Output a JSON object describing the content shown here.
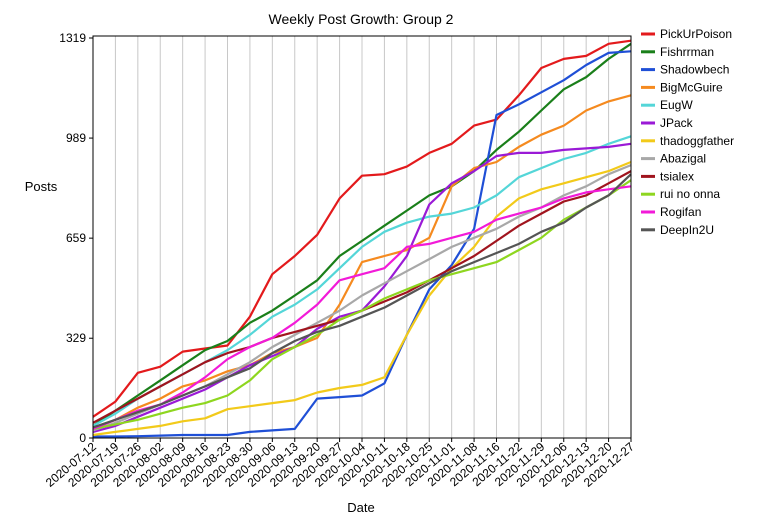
{
  "chart_data": {
    "type": "line",
    "title": "Weekly Post Growth: Group 2",
    "xlabel": "Date",
    "ylabel": "Posts",
    "ylim": [
      0,
      1319
    ],
    "yticks": [
      0,
      329,
      659,
      989,
      1319
    ],
    "grid": "vertical",
    "legend": "right",
    "categories": [
      "2020-07-12",
      "2020-07-19",
      "2020-07-26",
      "2020-08-02",
      "2020-08-09",
      "2020-08-16",
      "2020-08-23",
      "2020-08-30",
      "2020-09-06",
      "2020-09-13",
      "2020-09-20",
      "2020-09-27",
      "2020-10-04",
      "2020-10-11",
      "2020-10-18",
      "2020-10-25",
      "2020-11-01",
      "2020-11-08",
      "2020-11-16",
      "2020-11-22",
      "2020-11-29",
      "2020-12-06",
      "2020-12-13",
      "2020-12-20",
      "2020-12-27"
    ],
    "series": [
      {
        "name": "PickUrPoison",
        "color": "#e31a1c",
        "values": [
          70,
          120,
          215,
          235,
          285,
          295,
          305,
          400,
          540,
          600,
          670,
          790,
          865,
          870,
          895,
          940,
          970,
          1030,
          1050,
          1130,
          1220,
          1250,
          1260,
          1300,
          1310
        ]
      },
      {
        "name": "Fishrrman",
        "color": "#1a7f1a",
        "values": [
          40,
          90,
          140,
          190,
          240,
          290,
          320,
          380,
          420,
          470,
          520,
          600,
          650,
          700,
          750,
          800,
          830,
          880,
          950,
          1010,
          1080,
          1150,
          1190,
          1250,
          1300
        ]
      },
      {
        "name": "Shadowbech",
        "color": "#1f4fd6",
        "values": [
          5,
          5,
          6,
          8,
          10,
          10,
          10,
          20,
          25,
          30,
          130,
          135,
          140,
          180,
          340,
          490,
          570,
          690,
          1065,
          1100,
          1140,
          1180,
          1230,
          1270,
          1275
        ]
      },
      {
        "name": "BigMcGuire",
        "color": "#f58a1f",
        "values": [
          30,
          60,
          100,
          130,
          170,
          190,
          220,
          240,
          280,
          300,
          330,
          440,
          580,
          600,
          620,
          660,
          830,
          890,
          910,
          960,
          1000,
          1030,
          1080,
          1110,
          1130
        ]
      },
      {
        "name": "EugW",
        "color": "#54d6d8",
        "values": [
          40,
          80,
          130,
          170,
          210,
          250,
          290,
          340,
          400,
          440,
          490,
          560,
          630,
          680,
          710,
          730,
          740,
          760,
          800,
          860,
          890,
          920,
          940,
          970,
          995
        ]
      },
      {
        "name": "JPack",
        "color": "#9a1ad6",
        "values": [
          20,
          40,
          70,
          100,
          130,
          160,
          200,
          240,
          270,
          300,
          360,
          400,
          420,
          500,
          600,
          770,
          840,
          880,
          930,
          940,
          940,
          950,
          955,
          960,
          970
        ]
      },
      {
        "name": "thadoggfather",
        "color": "#f2ca1a",
        "values": [
          10,
          20,
          30,
          40,
          55,
          65,
          95,
          105,
          115,
          125,
          150,
          165,
          175,
          200,
          340,
          470,
          560,
          630,
          730,
          790,
          820,
          840,
          860,
          880,
          910
        ]
      },
      {
        "name": "Abazigal",
        "color": "#a8a8a8",
        "values": [
          25,
          50,
          80,
          110,
          140,
          170,
          210,
          250,
          300,
          340,
          380,
          420,
          470,
          510,
          550,
          590,
          630,
          660,
          690,
          730,
          760,
          800,
          830,
          870,
          900
        ]
      },
      {
        "name": "tsialex",
        "color": "#a0141e",
        "values": [
          50,
          90,
          130,
          170,
          210,
          250,
          280,
          300,
          330,
          350,
          370,
          390,
          420,
          450,
          480,
          520,
          560,
          600,
          650,
          700,
          740,
          780,
          800,
          840,
          880
        ]
      },
      {
        "name": "rui no onna",
        "color": "#8ed61f",
        "values": [
          30,
          45,
          60,
          80,
          100,
          115,
          140,
          190,
          260,
          300,
          340,
          390,
          420,
          460,
          490,
          520,
          540,
          560,
          580,
          620,
          660,
          720,
          760,
          800,
          850
        ]
      },
      {
        "name": "Rogifan",
        "color": "#f21ad8",
        "values": [
          30,
          60,
          90,
          110,
          150,
          200,
          260,
          300,
          330,
          380,
          440,
          520,
          540,
          560,
          630,
          640,
          660,
          680,
          720,
          740,
          760,
          790,
          810,
          820,
          830
        ]
      },
      {
        "name": "DeepIn2U",
        "color": "#555555",
        "values": [
          35,
          60,
          85,
          110,
          140,
          170,
          200,
          230,
          280,
          320,
          350,
          370,
          400,
          430,
          470,
          510,
          550,
          580,
          610,
          640,
          680,
          710,
          760,
          800,
          870
        ]
      }
    ]
  }
}
